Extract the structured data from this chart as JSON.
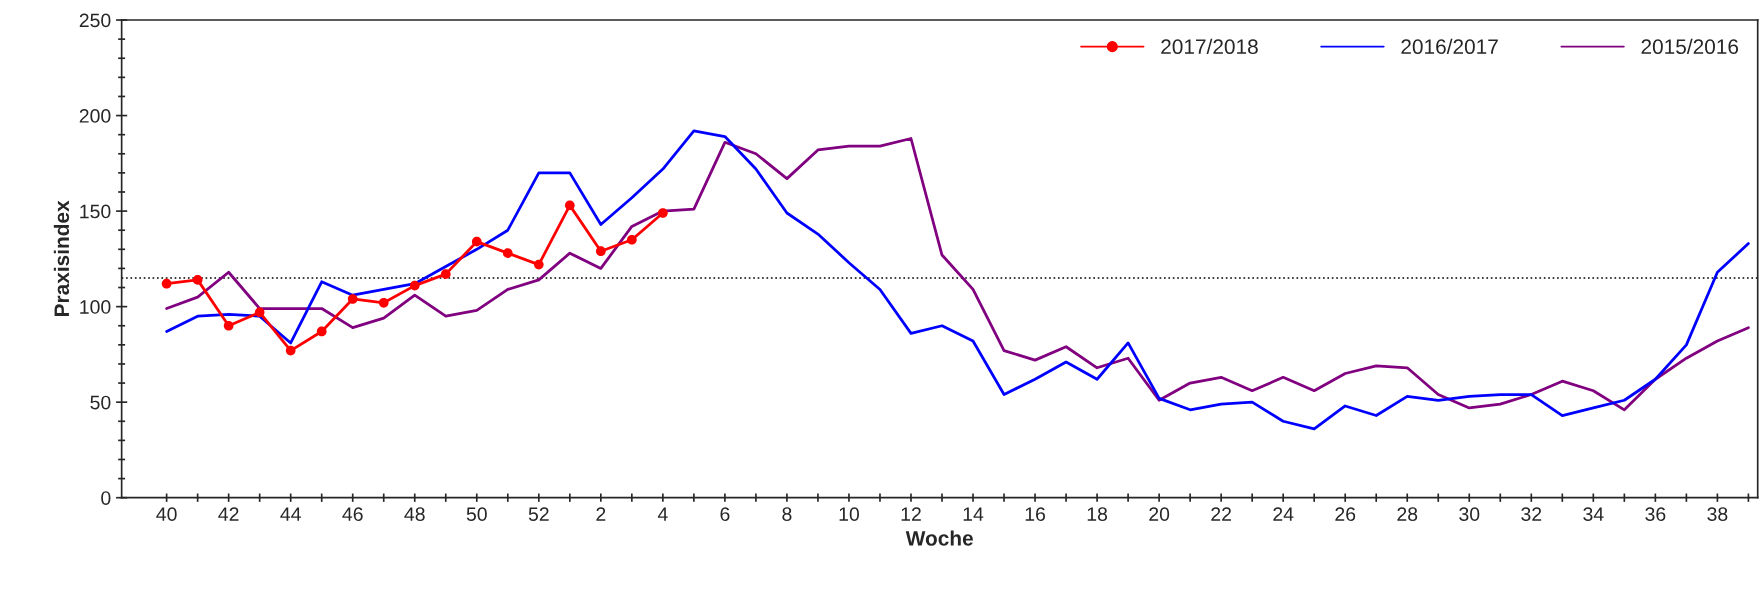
{
  "chart_data": {
    "type": "line",
    "xlabel": "Woche",
    "ylabel": "Praxisindex",
    "categories": [
      "40",
      null,
      "42",
      null,
      "44",
      null,
      "46",
      null,
      "48",
      null,
      "50",
      null,
      "52",
      null,
      "2",
      null,
      "4",
      null,
      "6",
      null,
      "8",
      null,
      "10",
      null,
      "12",
      null,
      "14",
      null,
      "16",
      null,
      "18",
      null,
      "20",
      null,
      "22",
      null,
      "24",
      null,
      "26",
      null,
      "28",
      null,
      "30",
      null,
      "32",
      null,
      "34",
      null,
      "36",
      null,
      "38",
      null
    ],
    "series": [
      {
        "name": "2017/2018",
        "color": "#ff0000",
        "marker": "circle",
        "values": [
          112,
          114,
          90,
          97,
          77,
          87,
          104,
          102,
          111,
          117,
          134,
          128,
          122,
          153,
          129,
          135,
          149,
          null,
          null,
          null,
          null,
          null,
          null,
          null,
          null,
          null,
          null,
          null,
          null,
          null,
          null,
          null,
          null,
          null,
          null,
          null,
          null,
          null,
          null,
          null,
          null,
          null,
          null,
          null,
          null,
          null,
          null,
          null,
          null,
          null,
          null,
          null
        ]
      },
      {
        "name": "2016/2017",
        "color": "#0000ff",
        "marker": "none",
        "values": [
          87,
          95,
          96,
          95,
          81,
          113,
          106,
          109,
          112,
          121,
          130,
          140,
          170,
          170,
          143,
          157,
          172,
          192,
          189,
          172,
          149,
          138,
          123,
          109,
          86,
          90,
          82,
          54,
          62,
          71,
          62,
          81,
          52,
          46,
          49,
          50,
          40,
          36,
          48,
          43,
          53,
          51,
          53,
          54,
          54,
          43,
          47,
          51,
          62,
          80,
          118,
          133
        ]
      },
      {
        "name": "2015/2016",
        "color": "#800080",
        "marker": "none",
        "values": [
          99,
          105,
          118,
          99,
          99,
          99,
          89,
          94,
          106,
          95,
          98,
          109,
          114,
          128,
          120,
          142,
          150,
          151,
          186,
          180,
          167,
          182,
          184,
          184,
          188,
          127,
          109,
          77,
          72,
          79,
          68,
          73,
          51,
          60,
          63,
          56,
          63,
          56,
          65,
          69,
          68,
          54,
          47,
          49,
          54,
          61,
          56,
          46,
          62,
          73,
          82,
          89
        ]
      }
    ],
    "ylim": [
      0,
      250
    ],
    "yticks": [
      0,
      50,
      100,
      150,
      200,
      250
    ],
    "ref_lines": [
      {
        "axis": "y",
        "value": 115,
        "color": "#000000",
        "line_style": "dotted"
      }
    ],
    "legend": "top right",
    "grid": false
  }
}
